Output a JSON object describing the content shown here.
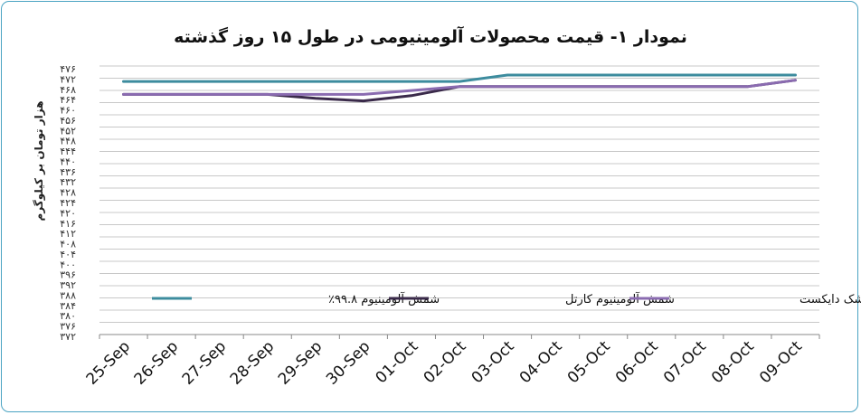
{
  "chart_data": {
    "type": "line",
    "title": "نمودار ۱- قیمت محصولات آلومینیومی در طول ۱۵ روز گذشته",
    "ylabel": "هزار تومان بر کیلوگرم",
    "ylim": [
      270,
      478
    ],
    "yticks": [
      "۴۷۶",
      "۴۷۲",
      "۴۶۸",
      "۴۶۴",
      "۴۶۰",
      "۴۵۶",
      "۴۵۲",
      "۴۴۸",
      "۴۴۴",
      "۴۴۰",
      "۴۳۶",
      "۴۳۲",
      "۴۲۸",
      "۴۲۴",
      "۴۲۰",
      "۴۱۶",
      "۴۱۲",
      "۴۰۸",
      "۴۰۴",
      "۴۰۰",
      "۳۹۶",
      "۳۹۲",
      "۳۸۸",
      "۳۸۴",
      "۳۸۰",
      "۳۷۶",
      "۳۷۲"
    ],
    "grid": true,
    "legend": "bottom",
    "categories": [
      "25-Sep",
      "26-Sep",
      "27-Sep",
      "28-Sep",
      "29-Sep",
      "30-Sep",
      "01-Oct",
      "02-Oct",
      "03-Oct",
      "04-Oct",
      "05-Oct",
      "06-Oct",
      "07-Oct",
      "08-Oct",
      "09-Oct"
    ],
    "series": [
      {
        "name": "شمش آلومینیوم ۹۹.۸٪",
        "color": "#3d8c9e",
        "values": [
          466,
          466,
          466,
          466,
          466,
          466,
          466,
          466,
          471,
          471,
          471,
          471,
          471,
          471,
          471
        ]
      },
      {
        "name": "شمش آلومینیوم کارتل",
        "color": "#3a2a4a",
        "values": [
          456,
          456,
          456,
          456,
          453,
          451,
          455,
          462,
          462,
          462,
          462,
          462,
          462,
          462,
          467
        ]
      },
      {
        "name": "شمش خشک دایکست",
        "color": "#8a6bb0",
        "values": [
          456,
          456,
          456,
          456,
          456,
          456,
          459,
          462,
          462,
          462,
          462,
          462,
          462,
          462,
          467
        ]
      }
    ]
  }
}
